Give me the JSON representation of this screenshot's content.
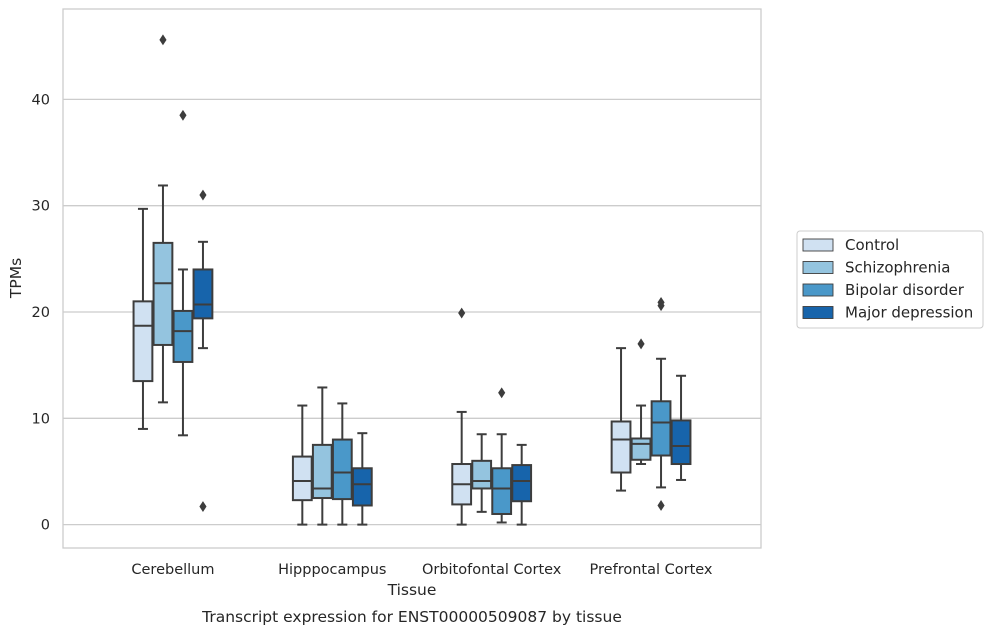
{
  "chart_data": {
    "type": "box",
    "title": "",
    "caption": "Transcript expression for ENST00000509087 by tissue",
    "xlabel": "Tissue",
    "ylabel": "TPMs",
    "ylim": [
      -2.2,
      48.5
    ],
    "yticks": [
      0,
      10,
      20,
      30,
      40
    ],
    "grid": "horizontal",
    "legend_position": "right",
    "categories": [
      "Cerebellum",
      "Hipppocampus",
      "Orbitofontal Cortex",
      "Prefrontal Cortex"
    ],
    "series": [
      {
        "name": "Control",
        "color": "#d0e1f2",
        "boxes": [
          {
            "whisker_low": 9.0,
            "q1": 13.5,
            "median": 18.7,
            "q3": 21.0,
            "whisker_high": 29.7,
            "outliers": []
          },
          {
            "whisker_low": 0.0,
            "q1": 2.3,
            "median": 4.1,
            "q3": 6.4,
            "whisker_high": 11.2,
            "outliers": []
          },
          {
            "whisker_low": 0.0,
            "q1": 1.9,
            "median": 3.8,
            "q3": 5.7,
            "whisker_high": 10.6,
            "outliers": [
              19.9
            ]
          },
          {
            "whisker_low": 3.2,
            "q1": 4.9,
            "median": 8.0,
            "q3": 9.7,
            "whisker_high": 16.6,
            "outliers": []
          }
        ]
      },
      {
        "name": "Schizophrenia",
        "color": "#94c4df",
        "boxes": [
          {
            "whisker_low": 11.5,
            "q1": 16.9,
            "median": 22.7,
            "q3": 26.5,
            "whisker_high": 31.9,
            "outliers": [
              45.6
            ]
          },
          {
            "whisker_low": 0.0,
            "q1": 2.5,
            "median": 3.4,
            "q3": 7.5,
            "whisker_high": 12.9,
            "outliers": []
          },
          {
            "whisker_low": 1.2,
            "q1": 3.4,
            "median": 4.1,
            "q3": 6.0,
            "whisker_high": 8.5,
            "outliers": []
          },
          {
            "whisker_low": 5.7,
            "q1": 6.1,
            "median": 7.6,
            "q3": 8.1,
            "whisker_high": 11.2,
            "outliers": [
              17.0
            ]
          }
        ]
      },
      {
        "name": "Bipolar disorder",
        "color": "#4a98c9",
        "boxes": [
          {
            "whisker_low": 8.4,
            "q1": 15.3,
            "median": 18.2,
            "q3": 20.1,
            "whisker_high": 24.0,
            "outliers": [
              38.5
            ]
          },
          {
            "whisker_low": 0.0,
            "q1": 2.4,
            "median": 4.9,
            "q3": 8.0,
            "whisker_high": 11.4,
            "outliers": []
          },
          {
            "whisker_low": 0.2,
            "q1": 1.0,
            "median": 3.4,
            "q3": 5.3,
            "whisker_high": 8.5,
            "outliers": [
              12.4
            ]
          },
          {
            "whisker_low": 3.5,
            "q1": 6.5,
            "median": 9.6,
            "q3": 11.6,
            "whisker_high": 15.6,
            "outliers": [
              1.8,
              20.6,
              20.9
            ]
          }
        ]
      },
      {
        "name": "Major depression",
        "color": "#1764ab",
        "boxes": [
          {
            "whisker_low": 16.6,
            "q1": 19.4,
            "median": 20.7,
            "q3": 24.0,
            "whisker_high": 26.6,
            "outliers": [
              31.0,
              1.7
            ]
          },
          {
            "whisker_low": 0.0,
            "q1": 1.8,
            "median": 3.8,
            "q3": 5.3,
            "whisker_high": 8.6,
            "outliers": []
          },
          {
            "whisker_low": 0.0,
            "q1": 2.2,
            "median": 4.1,
            "q3": 5.6,
            "whisker_high": 7.5,
            "outliers": []
          },
          {
            "whisker_low": 4.2,
            "q1": 5.7,
            "median": 7.4,
            "q3": 9.8,
            "whisker_high": 14.0,
            "outliers": []
          }
        ]
      }
    ]
  }
}
